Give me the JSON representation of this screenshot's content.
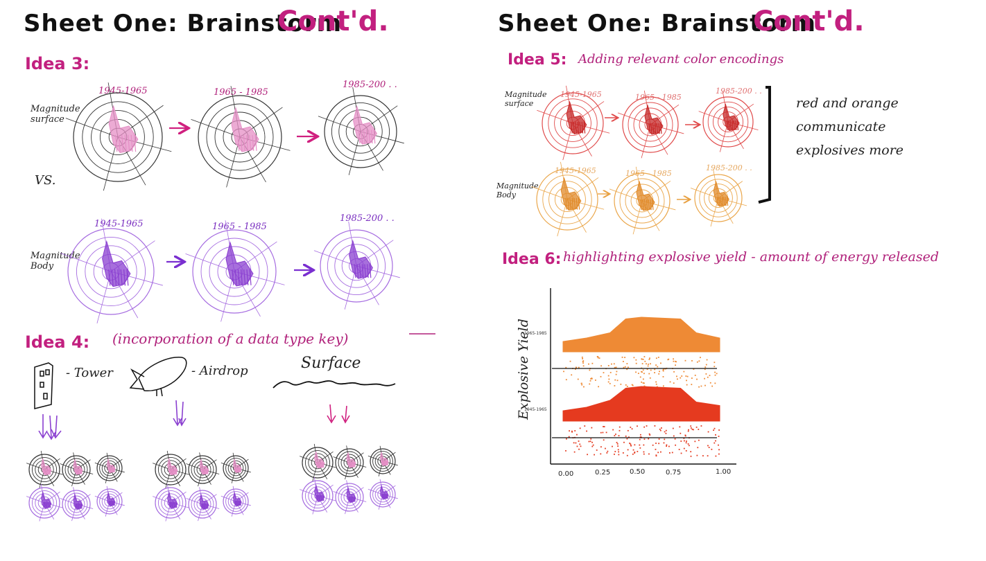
{
  "left": {
    "title_main": "Sheet One: Brainstorm",
    "title_accent": "Cont'd.",
    "idea3": {
      "heading": "Idea 3:",
      "surface_label": "Magnitude surface",
      "vs_label": "VS.",
      "body_label": "Magnitude Body",
      "surface_years": [
        "1945-1965",
        "1965 - 1985",
        "1985-200 . ."
      ],
      "body_years": [
        "1945-1965",
        "1965 - 1985",
        "1985-200 . ."
      ]
    },
    "idea4": {
      "heading": "Idea 4:",
      "text": "(incorporation of  a data type key)",
      "tower_label": "- Tower",
      "airdrop_label": "- Airdrop",
      "surface_label": "Surface"
    },
    "colors": {
      "surface": "#e58fc6",
      "body": "#8a3fd0",
      "accent": "#c2207f"
    }
  },
  "right": {
    "title_main": "Sheet One: Brainstorm",
    "title_accent": "Cont'd.",
    "idea5": {
      "heading": "Idea 5:",
      "text": "Adding relevant color encodings",
      "surface_label": "Magnitude surface",
      "body_label": "Magnitude Body",
      "surface_years": [
        "1945-1965",
        "1965 - 1985",
        "1985-200 . ."
      ],
      "body_years": [
        "1945-1965",
        "1965 - 1985",
        "1985-200 . ."
      ],
      "note": "red and orange communicate explosives more",
      "colors": {
        "red": "#e04a4a",
        "orange": "#eaa64a"
      }
    },
    "idea6": {
      "heading": "Idea 6:",
      "text": "highlighting explosive yield - amount of energy released"
    }
  },
  "chart_data": {
    "type": "area",
    "title": "",
    "xlabel": "",
    "ylabel": "Explosive Yield",
    "xlim": [
      0,
      1
    ],
    "x_ticks": [
      "0.00",
      "0.25",
      "0.50",
      "0.75",
      "1.00"
    ],
    "categories": [
      "1965-1985",
      "1945-1965"
    ],
    "series": [
      {
        "name": "1965-1985",
        "color": "#ee8a35",
        "x": [
          0.0,
          0.15,
          0.3,
          0.4,
          0.5,
          0.6,
          0.75,
          0.85,
          1.0
        ],
        "density": [
          0.3,
          0.4,
          0.55,
          0.95,
          1.0,
          0.98,
          0.95,
          0.55,
          0.4
        ]
      },
      {
        "name": "1945-1965",
        "color": "#e53a1f",
        "x": [
          0.0,
          0.15,
          0.3,
          0.4,
          0.5,
          0.6,
          0.75,
          0.85,
          1.0
        ],
        "density": [
          0.3,
          0.4,
          0.6,
          0.95,
          1.0,
          0.98,
          0.95,
          0.55,
          0.45
        ]
      }
    ]
  }
}
